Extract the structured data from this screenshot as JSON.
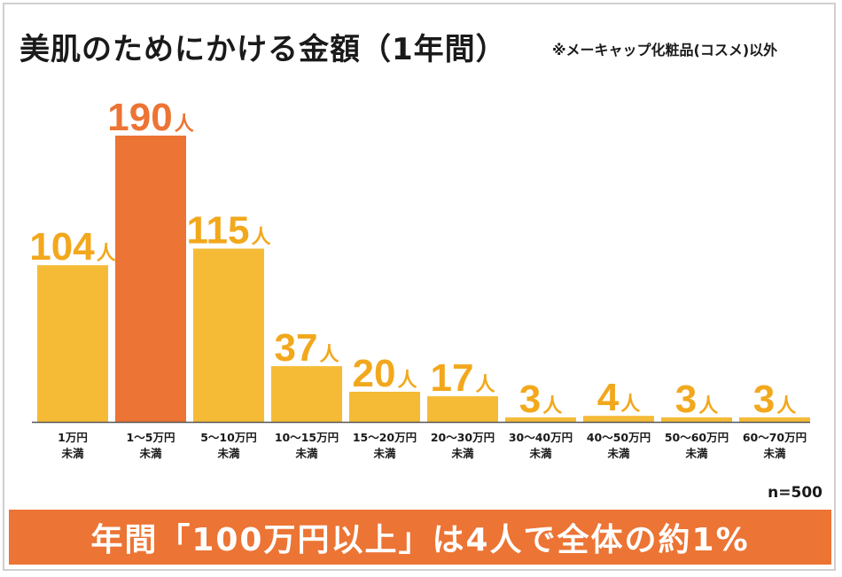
{
  "title": "美肌のためにかける金額（1年間）",
  "subtitle": "※メーキャップ化粧品(コスメ)以外",
  "sample_size": "n=500",
  "banner": "年間「100万円以上」は4人で全体の約1%",
  "colors": {
    "bar": "#f5bb37",
    "highlight_bar": "#ec7434",
    "label": "#f2a81d",
    "highlight_label": "#ec7434",
    "banner_bg": "#ec7434",
    "axis": "#555555"
  },
  "chart_data": {
    "type": "bar",
    "title": "美肌のためにかける金額（1年間）",
    "xlabel": "",
    "ylabel": "",
    "ylim": [
      0,
      190
    ],
    "grid": false,
    "unit": "人",
    "categories": [
      [
        "1万円",
        "未満"
      ],
      [
        "1～5万円",
        "未満"
      ],
      [
        "5～10万円",
        "未満"
      ],
      [
        "10～15万円",
        "未満"
      ],
      [
        "15～20万円",
        "未満"
      ],
      [
        "20～30万円",
        "未満"
      ],
      [
        "30～40万円",
        "未満"
      ],
      [
        "40～50万円",
        "未満"
      ],
      [
        "50～60万円",
        "未満"
      ],
      [
        "60～70万円",
        "未満"
      ]
    ],
    "values": [
      104,
      190,
      115,
      37,
      20,
      17,
      3,
      4,
      3,
      3
    ],
    "highlight_index": 1
  }
}
